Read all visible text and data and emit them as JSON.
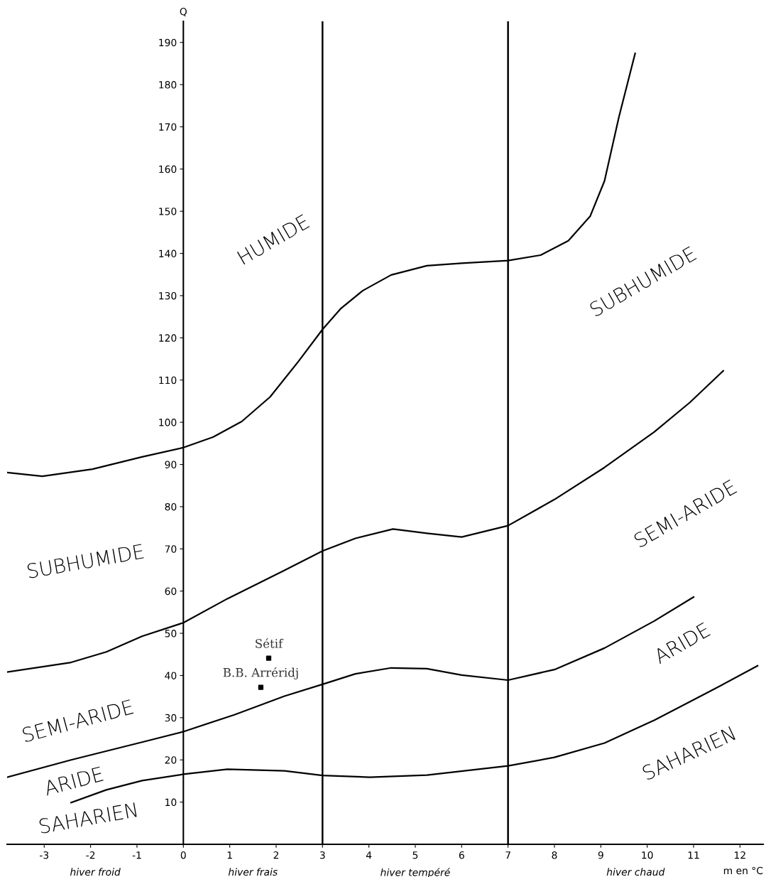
{
  "chart_data": {
    "type": "line",
    "xlabel": "m en °C",
    "ylabel": "Q",
    "xlim": [
      -3.8,
      12.5
    ],
    "ylim": [
      0,
      195
    ],
    "xticks": [
      -3,
      -2,
      -1,
      0,
      1,
      2,
      3,
      4,
      5,
      6,
      7,
      8,
      9,
      10,
      11,
      12
    ],
    "yticks": [
      10,
      20,
      30,
      40,
      50,
      60,
      70,
      80,
      90,
      100,
      110,
      120,
      130,
      140,
      150,
      160,
      170,
      180,
      190
    ],
    "grid": false,
    "legend": false,
    "marker": "none",
    "line_style": "solid",
    "ref_lines": [
      {
        "axis": "x",
        "value": 3,
        "label": null,
        "color": "#000000"
      },
      {
        "axis": "x",
        "value": 7,
        "label": null,
        "color": "#000000"
      }
    ],
    "series": [
      {
        "color": "#000000",
        "x": [
          -3.8,
          -3.04,
          -1.96,
          -0.89,
          0,
          0.64,
          1.26,
          1.87,
          2.48,
          3,
          3.4,
          3.87,
          4.48,
          5.25,
          6.0,
          7,
          7.7,
          8.3,
          8.77,
          9.08,
          9.39,
          9.74
        ],
        "values": [
          88.1,
          87.2,
          88.9,
          91.8,
          94,
          96.5,
          100.2,
          106,
          114.4,
          122,
          127,
          131.2,
          134.9,
          137.1,
          137.7,
          138.3,
          139.6,
          143,
          148.8,
          157.2,
          172.3,
          187.4
        ]
      },
      {
        "color": "#000000",
        "x": [
          -3.8,
          -2.42,
          -1.66,
          -0.89,
          0,
          0.95,
          2.18,
          3,
          3.71,
          4.52,
          5.25,
          6.0,
          7,
          8.0,
          9.08,
          10.15,
          10.92,
          11.64
        ],
        "values": [
          40.8,
          43.1,
          45.6,
          49.3,
          52.5,
          58.2,
          64.9,
          69.5,
          72.5,
          74.7,
          73.7,
          72.8,
          75.5,
          81.7,
          89.3,
          97.7,
          104.7,
          112.2
        ]
      },
      {
        "color": "#000000",
        "x": [
          -3.8,
          -2.42,
          -0.89,
          0,
          1.1,
          2.18,
          3,
          3.71,
          4.48,
          5.25,
          6.0,
          7,
          8.0,
          9.08,
          10.15,
          11.0
        ],
        "values": [
          15.9,
          20,
          24.2,
          26.7,
          30.7,
          35.1,
          37.9,
          40.4,
          41.8,
          41.6,
          40.1,
          38.9,
          41.4,
          46.5,
          52.9,
          58.6
        ]
      },
      {
        "color": "#000000",
        "x": [
          -2.42,
          -1.66,
          -0.89,
          0,
          0.95,
          2.18,
          3,
          4.02,
          5.25,
          7,
          8.0,
          9.08,
          10.15,
          11.38,
          12.38
        ],
        "values": [
          9.9,
          12.9,
          15.1,
          16.6,
          17.8,
          17.4,
          16.3,
          15.9,
          16.4,
          18.6,
          20.6,
          24,
          29.4,
          36.4,
          42.3
        ]
      },
      {
        "type": "scatter",
        "marker": "square",
        "color": "#000000",
        "x": [
          1.84,
          1.67
        ],
        "values": [
          44.1,
          37.2
        ],
        "value_labels": [
          "Sétif",
          "B.B. Arréridj"
        ]
      }
    ],
    "annotations": [
      "HUMIDE",
      "SUBHUMIDE",
      "SUBHUMIDE",
      "SEMI-ARIDE",
      "SEMI-ARIDE",
      "ARIDE",
      "ARIDE",
      "SAHARIEN",
      "SAHARIEN",
      "hiver froid",
      "hiver frais",
      "hiver tempéré",
      "hiver chaud"
    ]
  }
}
